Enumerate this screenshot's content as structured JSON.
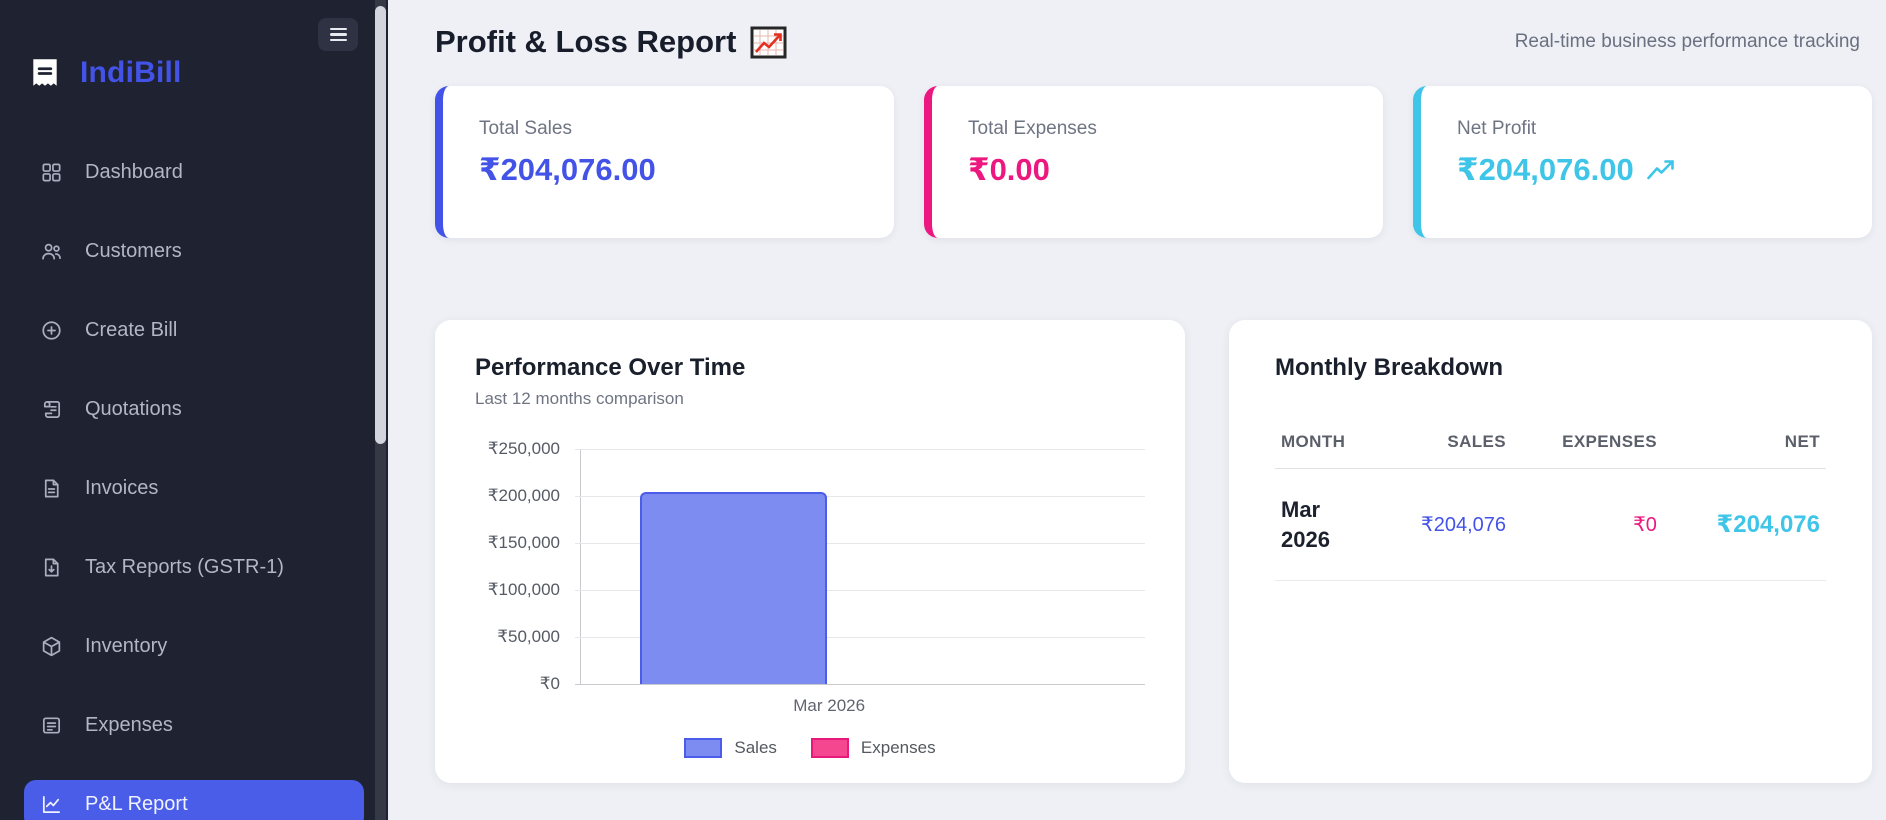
{
  "sidebar": {
    "brand": "IndiBill",
    "brand_color": "#4353e8",
    "items": [
      {
        "label": "Dashboard",
        "icon": "dashboard-grid-icon"
      },
      {
        "label": "Customers",
        "icon": "customers-icon"
      },
      {
        "label": "Create Bill",
        "icon": "create-bill-icon"
      },
      {
        "label": "Quotations",
        "icon": "quotations-icon"
      },
      {
        "label": "Invoices",
        "icon": "invoices-icon"
      },
      {
        "label": "Tax Reports (GSTR-1)",
        "icon": "tax-reports-icon"
      },
      {
        "label": "Inventory",
        "icon": "inventory-icon"
      },
      {
        "label": "Expenses",
        "icon": "expenses-icon"
      },
      {
        "label": "P&L Report",
        "icon": "pl-report-icon",
        "active": true
      }
    ]
  },
  "header": {
    "title": "Profit & Loss Report",
    "subtitle": "Real-time business performance tracking"
  },
  "stats": [
    {
      "label": "Total Sales",
      "value": "₹204,076.00",
      "color": "#4353e8"
    },
    {
      "label": "Total Expenses",
      "value": "₹0.00",
      "color": "#ec1880"
    },
    {
      "label": "Net Profit",
      "value": "₹204,076.00",
      "color": "#3ec5e8",
      "trend": "up"
    }
  ],
  "chart_card": {
    "title": "Performance Over Time",
    "subtitle": "Last 12 months comparison"
  },
  "chart_data": {
    "type": "bar",
    "categories": [
      "Mar 2026"
    ],
    "series": [
      {
        "name": "Sales",
        "values": [
          204076
        ],
        "color": "#7d8cf1",
        "border": "#4a5ce8"
      },
      {
        "name": "Expenses",
        "values": [
          0
        ],
        "color": "#f5478f",
        "border": "#e8197d"
      }
    ],
    "ylim": [
      0,
      250000
    ],
    "ytick_labels": [
      "₹250,000",
      "₹200,000",
      "₹150,000",
      "₹100,000",
      "₹50,000",
      "₹0"
    ],
    "grid": true,
    "legend_position": "bottom"
  },
  "breakdown": {
    "title": "Monthly Breakdown",
    "columns": [
      "MONTH",
      "SALES",
      "EXPENSES",
      "NET"
    ],
    "rows": [
      {
        "month": "Mar 2026",
        "sales": "₹204,076",
        "expenses": "₹0",
        "net": "₹204,076"
      }
    ]
  }
}
